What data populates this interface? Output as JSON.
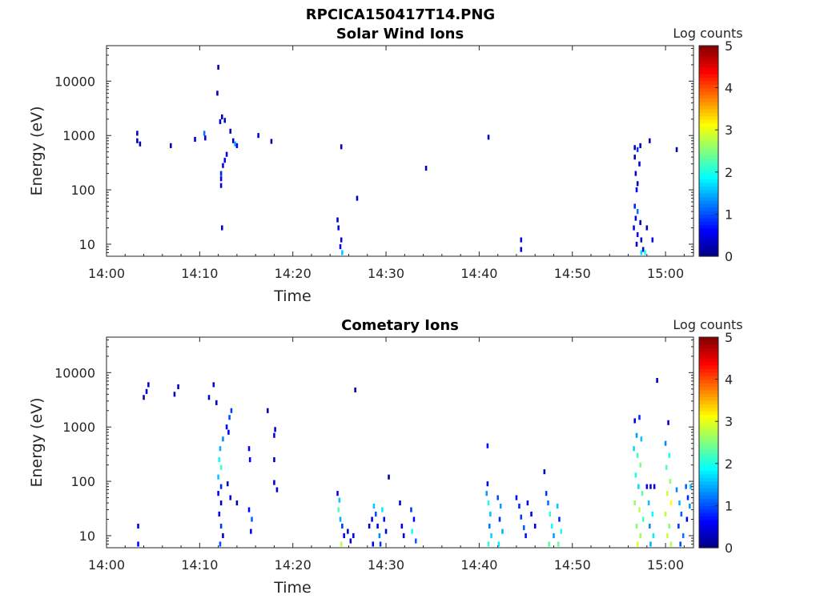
{
  "figure_title": "RPCICA150417T14.PNG",
  "chart_data": [
    {
      "type": "heatmap",
      "title": "Solar Wind Ions",
      "xlabel": "Time",
      "ylabel": "Energy (eV)",
      "yscale": "log",
      "ylim": [
        6,
        45000
      ],
      "xlim_minutes": [
        0,
        63
      ],
      "x_ticks": [
        {
          "label": "14:00",
          "minute": 0
        },
        {
          "label": "14:10",
          "minute": 10
        },
        {
          "label": "14:20",
          "minute": 20
        },
        {
          "label": "14:30",
          "minute": 30
        },
        {
          "label": "14:40",
          "minute": 40
        },
        {
          "label": "14:50",
          "minute": 50
        },
        {
          "label": "15:00",
          "minute": 60
        }
      ],
      "y_ticks": [
        {
          "label": "10",
          "value": 10
        },
        {
          "label": "100",
          "value": 100
        },
        {
          "label": "1000",
          "value": 1000
        },
        {
          "label": "10000",
          "value": 10000
        }
      ],
      "colorbar": {
        "label": "Log counts",
        "min": 0,
        "max": 5,
        "ticks": [
          "0",
          "1",
          "2",
          "3",
          "4",
          "5"
        ]
      },
      "cells": [
        [
          3.3,
          1100,
          0.3
        ],
        [
          3.3,
          800,
          0.2
        ],
        [
          3.6,
          700,
          0.3
        ],
        [
          6.9,
          650,
          0.2
        ],
        [
          9.5,
          850,
          0.3
        ],
        [
          10.5,
          1100,
          1.2
        ],
        [
          10.6,
          900,
          0.4
        ],
        [
          12,
          18000,
          0.3
        ],
        [
          11.9,
          6000,
          0.3
        ],
        [
          12.4,
          2200,
          0.2
        ],
        [
          12.2,
          1800,
          0.4
        ],
        [
          12.7,
          1900,
          0.3
        ],
        [
          13.3,
          1200,
          0.4
        ],
        [
          13.6,
          800,
          0.3
        ],
        [
          13.8,
          700,
          1.5
        ],
        [
          14.0,
          650,
          0.6
        ],
        [
          12.9,
          450,
          0.5
        ],
        [
          12.7,
          350,
          0.6
        ],
        [
          12.5,
          280,
          0.5
        ],
        [
          12.3,
          200,
          0.8
        ],
        [
          12.3,
          160,
          0.6
        ],
        [
          12.3,
          120,
          0.5
        ],
        [
          12.4,
          20,
          0.4
        ],
        [
          16.3,
          1000,
          0.3
        ],
        [
          17.7,
          780,
          0.2
        ],
        [
          25.2,
          620,
          0.3
        ],
        [
          26.9,
          70,
          0.3
        ],
        [
          34.3,
          250,
          0.3
        ],
        [
          41,
          930,
          0.3
        ],
        [
          24.8,
          28,
          0.4
        ],
        [
          24.9,
          20,
          0.6
        ],
        [
          25.2,
          12,
          0.5
        ],
        [
          25.1,
          9,
          0.6
        ],
        [
          25.3,
          7,
          1.6
        ],
        [
          44.5,
          12,
          0.6
        ],
        [
          44.5,
          8,
          0.4
        ],
        [
          56.7,
          600,
          0.4
        ],
        [
          57.0,
          550,
          0.9
        ],
        [
          57.3,
          650,
          0.3
        ],
        [
          58.3,
          800,
          0.3
        ],
        [
          56.7,
          400,
          0.3
        ],
        [
          57.2,
          300,
          0.4
        ],
        [
          56.8,
          200,
          0.4
        ],
        [
          57.0,
          130,
          0.4
        ],
        [
          56.9,
          100,
          0.6
        ],
        [
          56.7,
          50,
          0.8
        ],
        [
          57.0,
          40,
          1.2
        ],
        [
          56.8,
          30,
          0.6
        ],
        [
          57.3,
          25,
          0.4
        ],
        [
          56.6,
          20,
          0.5
        ],
        [
          57.0,
          15,
          0.7
        ],
        [
          56.9,
          10,
          0.4
        ],
        [
          57.4,
          12,
          0.3
        ],
        [
          57.6,
          8,
          0.4
        ],
        [
          58.0,
          20,
          0.3
        ],
        [
          58.6,
          12,
          0.5
        ],
        [
          57.4,
          7,
          1.7
        ],
        [
          57.8,
          7,
          2.0
        ],
        [
          61.2,
          550,
          0.2
        ]
      ]
    },
    {
      "type": "heatmap",
      "title": "Cometary Ions",
      "xlabel": "Time",
      "ylabel": "Energy (eV)",
      "yscale": "log",
      "ylim": [
        6,
        45000
      ],
      "xlim_minutes": [
        0,
        63
      ],
      "x_ticks": [
        {
          "label": "14:00",
          "minute": 0
        },
        {
          "label": "14:10",
          "minute": 10
        },
        {
          "label": "14:20",
          "minute": 20
        },
        {
          "label": "14:30",
          "minute": 30
        },
        {
          "label": "14:40",
          "minute": 40
        },
        {
          "label": "14:50",
          "minute": 50
        },
        {
          "label": "15:00",
          "minute": 60
        }
      ],
      "y_ticks": [
        {
          "label": "10",
          "value": 10
        },
        {
          "label": "100",
          "value": 100
        },
        {
          "label": "1000",
          "value": 1000
        },
        {
          "label": "10000",
          "value": 10000
        }
      ],
      "colorbar": {
        "label": "Log counts",
        "min": 0,
        "max": 5,
        "ticks": [
          "0",
          "1",
          "2",
          "3",
          "4",
          "5"
        ]
      },
      "cells": [
        [
          4.3,
          4500,
          0.3
        ],
        [
          4.5,
          6000,
          0.3
        ],
        [
          4.0,
          3500,
          0.3
        ],
        [
          7.3,
          4000,
          0.3
        ],
        [
          7.7,
          5500,
          0.3
        ],
        [
          11.0,
          3500,
          0.4
        ],
        [
          11.5,
          6000,
          0.4
        ],
        [
          11.8,
          2800,
          0.3
        ],
        [
          13.4,
          2000,
          0.9
        ],
        [
          13.2,
          1500,
          1.0
        ],
        [
          12.9,
          1000,
          0.5
        ],
        [
          13.1,
          800,
          0.6
        ],
        [
          12.5,
          600,
          1.3
        ],
        [
          12.2,
          400,
          1.5
        ],
        [
          12.1,
          250,
          1.9
        ],
        [
          12.3,
          180,
          2.2
        ],
        [
          12.0,
          120,
          1.6
        ],
        [
          12.3,
          80,
          0.8
        ],
        [
          12.0,
          60,
          0.5
        ],
        [
          12.3,
          40,
          0.4
        ],
        [
          12.1,
          25,
          0.6
        ],
        [
          12.3,
          15,
          0.9
        ],
        [
          12.5,
          10,
          0.4
        ],
        [
          12.2,
          7,
          1.0
        ],
        [
          13.0,
          90,
          0.3
        ],
        [
          13.3,
          50,
          0.5
        ],
        [
          14.0,
          40,
          0.3
        ],
        [
          15.3,
          400,
          0.5
        ],
        [
          15.4,
          250,
          0.6
        ],
        [
          15.3,
          30,
          0.6
        ],
        [
          15.6,
          20,
          1.1
        ],
        [
          15.5,
          12,
          0.5
        ],
        [
          17.3,
          2000,
          0.2
        ],
        [
          18.1,
          900,
          0.4
        ],
        [
          18.0,
          700,
          0.5
        ],
        [
          18.0,
          250,
          0.3
        ],
        [
          18.0,
          95,
          0.4
        ],
        [
          18.3,
          70,
          0.4
        ],
        [
          26.7,
          4800,
          0.2
        ],
        [
          30.3,
          120,
          0.2
        ],
        [
          3.4,
          15,
          0.5
        ],
        [
          3.4,
          7,
          0.6
        ],
        [
          24.8,
          60,
          0.5
        ],
        [
          25.0,
          45,
          1.6
        ],
        [
          24.9,
          30,
          2.3
        ],
        [
          25.1,
          20,
          1.5
        ],
        [
          25.3,
          15,
          0.9
        ],
        [
          25.5,
          10,
          0.6
        ],
        [
          25.2,
          7,
          2.8
        ],
        [
          25.9,
          12,
          0.4
        ],
        [
          26.2,
          8,
          0.5
        ],
        [
          26.5,
          10,
          0.6
        ],
        [
          28.2,
          15,
          0.4
        ],
        [
          28.5,
          20,
          0.5
        ],
        [
          28.7,
          35,
          1.6
        ],
        [
          28.9,
          25,
          1.0
        ],
        [
          29.1,
          15,
          0.5
        ],
        [
          29.3,
          10,
          1.3
        ],
        [
          29.6,
          30,
          1.8
        ],
        [
          29.8,
          20,
          0.7
        ],
        [
          30.0,
          12,
          0.5
        ],
        [
          28.6,
          7,
          0.6
        ],
        [
          29.4,
          7,
          0.9
        ],
        [
          31.5,
          40,
          0.4
        ],
        [
          31.7,
          15,
          0.6
        ],
        [
          31.9,
          10,
          0.4
        ],
        [
          32.7,
          30,
          0.9
        ],
        [
          33.0,
          20,
          0.6
        ],
        [
          32.8,
          12,
          1.9
        ],
        [
          33.2,
          8,
          1.1
        ],
        [
          40.9,
          450,
          0.7
        ],
        [
          40.9,
          90,
          0.5
        ],
        [
          40.8,
          60,
          1.4
        ],
        [
          41.0,
          40,
          2.0
        ],
        [
          41.2,
          25,
          1.6
        ],
        [
          41.1,
          15,
          1.2
        ],
        [
          41.3,
          10,
          1.7
        ],
        [
          41.0,
          7,
          2.1
        ],
        [
          42.0,
          50,
          1.0
        ],
        [
          42.3,
          35,
          1.4
        ],
        [
          42.2,
          20,
          0.8
        ],
        [
          42.5,
          12,
          1.5
        ],
        [
          42.1,
          7,
          1.8
        ],
        [
          44.0,
          50,
          0.5
        ],
        [
          44.3,
          35,
          0.8
        ],
        [
          44.5,
          22,
          0.9
        ],
        [
          44.8,
          14,
          1.1
        ],
        [
          45.0,
          10,
          0.7
        ],
        [
          45.2,
          40,
          0.5
        ],
        [
          45.6,
          25,
          0.6
        ],
        [
          46.0,
          15,
          0.5
        ],
        [
          47.0,
          150,
          0.3
        ],
        [
          47.2,
          60,
          0.9
        ],
        [
          47.4,
          40,
          1.2
        ],
        [
          47.6,
          25,
          2.1
        ],
        [
          47.8,
          15,
          1.9
        ],
        [
          48.0,
          10,
          1.4
        ],
        [
          47.5,
          7,
          2.3
        ],
        [
          48.4,
          35,
          1.6
        ],
        [
          48.6,
          20,
          0.8
        ],
        [
          48.8,
          12,
          2.0
        ],
        [
          48.5,
          7,
          2.4
        ],
        [
          56.7,
          1300,
          0.5
        ],
        [
          57.2,
          1500,
          0.8
        ],
        [
          56.9,
          700,
          1.4
        ],
        [
          57.4,
          600,
          1.6
        ],
        [
          56.6,
          400,
          1.7
        ],
        [
          57.0,
          300,
          2.2
        ],
        [
          57.3,
          200,
          2.5
        ],
        [
          56.8,
          130,
          2.0
        ],
        [
          57.1,
          80,
          1.7
        ],
        [
          57.5,
          60,
          2.3
        ],
        [
          56.7,
          40,
          2.6
        ],
        [
          57.2,
          30,
          2.8
        ],
        [
          57.6,
          20,
          2.2
        ],
        [
          56.9,
          15,
          2.5
        ],
        [
          57.3,
          10,
          2.7
        ],
        [
          57.0,
          7,
          3.0
        ],
        [
          58.0,
          80,
          0.6
        ],
        [
          58.4,
          80,
          0.5
        ],
        [
          58.8,
          80,
          0.4
        ],
        [
          58.2,
          40,
          1.6
        ],
        [
          58.6,
          25,
          1.9
        ],
        [
          58.3,
          15,
          1.3
        ],
        [
          58.7,
          10,
          1.8
        ],
        [
          58.4,
          7,
          1.5
        ],
        [
          59.1,
          7200,
          0.3
        ],
        [
          60.3,
          1200,
          0.4
        ],
        [
          60.0,
          500,
          1.3
        ],
        [
          60.4,
          300,
          2.0
        ],
        [
          60.1,
          180,
          2.3
        ],
        [
          60.5,
          100,
          2.6
        ],
        [
          60.2,
          60,
          2.9
        ],
        [
          60.6,
          40,
          3.1
        ],
        [
          60.0,
          25,
          2.8
        ],
        [
          60.4,
          15,
          2.5
        ],
        [
          60.2,
          10,
          2.9
        ],
        [
          60.6,
          7,
          2.7
        ],
        [
          61.2,
          70,
          1.3
        ],
        [
          61.5,
          40,
          1.5
        ],
        [
          61.7,
          25,
          1.1
        ],
        [
          61.4,
          15,
          0.9
        ],
        [
          61.9,
          10,
          1.2
        ],
        [
          61.6,
          7,
          1.0
        ],
        [
          62.2,
          80,
          1.1
        ],
        [
          62.4,
          50,
          0.8
        ],
        [
          62.6,
          35,
          1.4
        ],
        [
          62.3,
          20,
          0.6
        ],
        [
          62.7,
          80,
          1.6
        ]
      ]
    }
  ]
}
